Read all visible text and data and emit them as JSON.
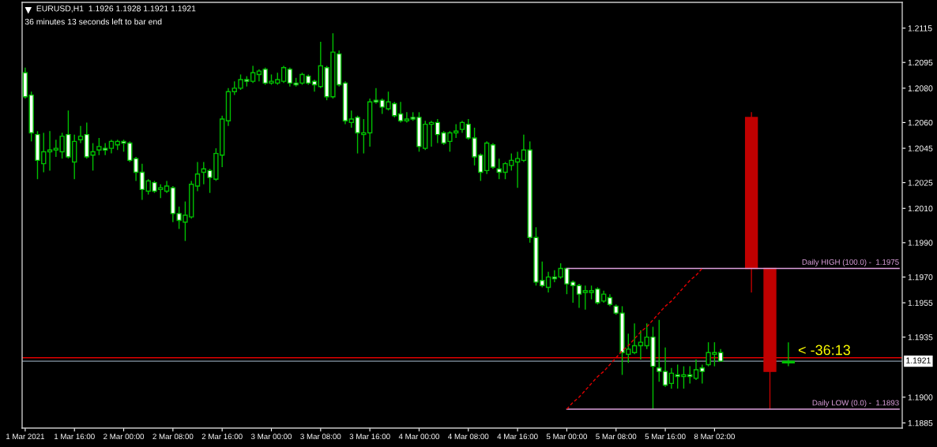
{
  "chart_data": {
    "type": "candlestick",
    "title": "EURUSD,H1  1.1926 1.1928 1.1921 1.1921",
    "subtitle": "36 minutes 13 seconds left to bar end",
    "categories": [
      "1 Mar 2021",
      null,
      null,
      null,
      null,
      null,
      null,
      null,
      "1 Mar 16:00",
      null,
      null,
      null,
      null,
      null,
      null,
      null,
      "2 Mar 00:00",
      null,
      null,
      null,
      null,
      null,
      null,
      null,
      "2 Mar 08:00",
      null,
      null,
      null,
      null,
      null,
      null,
      null,
      "2 Mar 16:00",
      null,
      null,
      null,
      null,
      null,
      null,
      null,
      "3 Mar 00:00",
      null,
      null,
      null,
      null,
      null,
      null,
      null,
      "3 Mar 08:00",
      null,
      null,
      null,
      null,
      null,
      null,
      null,
      "3 Mar 16:00",
      null,
      null,
      null,
      null,
      null,
      null,
      null,
      "4 Mar 00:00",
      null,
      null,
      null,
      null,
      null,
      null,
      null,
      "4 Mar 08:00",
      null,
      null,
      null,
      null,
      null,
      null,
      null,
      "4 Mar 16:00",
      null,
      null,
      null,
      null,
      null,
      null,
      null,
      "5 Mar 00:00",
      null,
      null,
      null,
      null,
      null,
      null,
      null,
      "5 Mar 08:00",
      null,
      null,
      null,
      null,
      null,
      null,
      null,
      "5 Mar 16:00",
      null,
      null,
      null,
      null,
      null,
      null,
      null,
      "8 Mar 02:00",
      null,
      null,
      null,
      null,
      null,
      null,
      null,
      null,
      null,
      null,
      null,
      null,
      null,
      null,
      null,
      null,
      null,
      null,
      null,
      null,
      null,
      null,
      null,
      null,
      null,
      null,
      null,
      null,
      null,
      null
    ],
    "ylim": [
      1.1882,
      1.213
    ],
    "yticks": [
      1.2115,
      1.2095,
      {
        "value": 1.208,
        "label": "1.2080"
      },
      {
        "value": 1.206,
        "label": "1.2060"
      },
      1.2045,
      1.2025,
      {
        "value": 1.201,
        "label": "1.2010"
      },
      {
        "value": 1.199,
        "label": "1.1990"
      },
      {
        "value": 1.197,
        "label": "1.1970"
      },
      1.1955,
      1.1935,
      {
        "value": 1.19,
        "label": "1.1900"
      },
      1.1885
    ],
    "series": [
      {
        "color": "#00c000",
        "ohlc": [
          [
            1.2089,
            1.2092,
            1.2074,
            1.2075
          ],
          [
            1.2076,
            1.2078,
            1.2049,
            1.2054
          ],
          [
            1.2053,
            1.2055,
            1.2027,
            1.2038
          ],
          [
            1.2036,
            1.2054,
            1.2031,
            1.2043
          ],
          [
            1.2043,
            1.2055,
            1.2032,
            1.2044
          ],
          [
            1.2044,
            1.205,
            1.204,
            1.2045
          ],
          [
            1.2043,
            1.2054,
            1.2039,
            1.2052
          ],
          [
            1.2053,
            1.2067,
            1.2039,
            1.204
          ],
          [
            1.2037,
            1.2053,
            1.2027,
            1.2049
          ],
          [
            1.205,
            1.2058,
            1.2048,
            1.2052
          ],
          [
            1.2053,
            1.206,
            1.2039,
            1.204
          ],
          [
            1.2041,
            1.2048,
            1.2032,
            1.2043
          ],
          [
            1.2044,
            1.2051,
            1.2041,
            1.2046
          ],
          [
            1.2045,
            1.2048,
            1.2041,
            1.2044
          ],
          [
            1.2045,
            1.205,
            1.2042,
            1.2049
          ],
          [
            1.2047,
            1.205,
            1.2044,
            1.2049
          ],
          [
            1.2049,
            1.205,
            1.2043,
            1.2048
          ],
          [
            1.2048,
            1.2049,
            1.2037,
            1.2038
          ],
          [
            1.2039,
            1.204,
            1.2026,
            1.2031
          ],
          [
            1.2031,
            1.2036,
            1.2015,
            1.2021
          ],
          [
            1.202,
            1.2027,
            1.2018,
            1.2026
          ],
          [
            1.2025,
            1.2026,
            1.2019,
            1.202
          ],
          [
            1.2021,
            1.2024,
            1.2016,
            1.2022
          ],
          [
            1.202,
            1.2026,
            1.2019,
            1.2023
          ],
          [
            1.2022,
            1.2023,
            1.2002,
            1.2007
          ],
          [
            1.2007,
            1.2011,
            1.1998,
            1.2003
          ],
          [
            1.2002,
            1.2014,
            1.1991,
            1.2006
          ],
          [
            1.2005,
            1.2026,
            1.2004,
            1.2024
          ],
          [
            1.2023,
            1.2037,
            1.202,
            1.203
          ],
          [
            1.2031,
            1.2037,
            1.2024,
            1.2033
          ],
          [
            1.2032,
            1.2033,
            1.2019,
            1.2028
          ],
          [
            1.2027,
            1.2045,
            1.2026,
            1.2042
          ],
          [
            1.2041,
            1.2064,
            1.2034,
            1.2062
          ],
          [
            1.2061,
            1.208,
            1.2058,
            1.2078
          ],
          [
            1.2078,
            1.2084,
            1.2076,
            1.208
          ],
          [
            1.208,
            1.2088,
            1.2079,
            1.2085
          ],
          [
            1.2085,
            1.2087,
            1.2081,
            1.2084
          ],
          [
            1.2084,
            1.2093,
            1.2083,
            1.2089
          ],
          [
            1.2088,
            1.2091,
            1.2084,
            1.209
          ],
          [
            1.2091,
            1.2092,
            1.2082,
            1.2083
          ],
          [
            1.2083,
            1.2088,
            1.2082,
            1.2084
          ],
          [
            1.2083,
            1.2089,
            1.2082,
            1.2085
          ],
          [
            1.2084,
            1.2093,
            1.2083,
            1.2092
          ],
          [
            1.2091,
            1.2092,
            1.2081,
            1.2083
          ],
          [
            1.2083,
            1.2086,
            1.2081,
            1.2082
          ],
          [
            1.2083,
            1.2089,
            1.2082,
            1.2088
          ],
          [
            1.2087,
            1.2088,
            1.2082,
            1.2083
          ],
          [
            1.2084,
            1.2085,
            1.2078,
            1.2082
          ],
          [
            1.2081,
            1.2107,
            1.208,
            1.2093
          ],
          [
            1.2092,
            1.2093,
            1.2073,
            1.2075
          ],
          [
            1.2075,
            1.2112,
            1.2074,
            1.2101
          ],
          [
            1.21,
            1.2102,
            1.2081,
            1.2082
          ],
          [
            1.2083,
            1.2084,
            1.2059,
            1.2061
          ],
          [
            1.206,
            1.2067,
            1.2057,
            1.2062
          ],
          [
            1.2063,
            1.2064,
            1.2042,
            1.2054
          ],
          [
            1.2053,
            1.2062,
            1.2042,
            1.2054
          ],
          [
            1.2054,
            1.2074,
            1.2046,
            1.2072
          ],
          [
            1.2073,
            1.208,
            1.2071,
            1.2072
          ],
          [
            1.2073,
            1.2074,
            1.2065,
            1.2069
          ],
          [
            1.2068,
            1.2078,
            1.2067,
            1.2072
          ],
          [
            1.2071,
            1.2072,
            1.2063,
            1.2064
          ],
          [
            1.2065,
            1.2072,
            1.206,
            1.2061
          ],
          [
            1.2061,
            1.2066,
            1.206,
            1.2062
          ],
          [
            1.2063,
            1.2066,
            1.2061,
            1.2062
          ],
          [
            1.2063,
            1.2066,
            1.2043,
            1.2046
          ],
          [
            1.2045,
            1.2061,
            1.2044,
            1.2059
          ],
          [
            1.2059,
            1.2061,
            1.2046,
            1.206
          ],
          [
            1.206,
            1.2062,
            1.2048,
            1.2053
          ],
          [
            1.2054,
            1.2055,
            1.2047,
            1.2048
          ],
          [
            1.2049,
            1.2055,
            1.2043,
            1.2054
          ],
          [
            1.2054,
            1.2059,
            1.2051,
            1.2055
          ],
          [
            1.2056,
            1.2061,
            1.2054,
            1.206
          ],
          [
            1.2059,
            1.2062,
            1.205,
            1.2051
          ],
          [
            1.2051,
            1.2057,
            1.2035,
            1.204
          ],
          [
            1.2041,
            1.2042,
            1.2026,
            1.2031
          ],
          [
            1.2032,
            1.2049,
            1.203,
            1.2048
          ],
          [
            1.2047,
            1.2048,
            1.2033,
            1.2034
          ],
          [
            1.2033,
            1.2039,
            1.2027,
            1.2031
          ],
          [
            1.2031,
            1.2037,
            1.2027,
            1.2036
          ],
          [
            1.2035,
            1.2042,
            1.2032,
            1.2038
          ],
          [
            1.2037,
            1.2043,
            1.2022,
            1.2039
          ],
          [
            1.2038,
            1.2053,
            1.2037,
            1.2044
          ],
          [
            1.2044,
            1.2049,
            1.199,
            1.1993
          ],
          [
            1.1993,
            1.1999,
            1.1965,
            1.1967
          ],
          [
            1.1968,
            1.1979,
            1.1964,
            1.1965
          ],
          [
            1.1964,
            1.1973,
            1.1961,
            1.197
          ],
          [
            1.197,
            1.1974,
            1.1967,
            1.1969
          ],
          [
            1.197,
            1.1978,
            1.1969,
            1.1975
          ],
          [
            1.1975,
            1.1975,
            1.196,
            1.1966
          ],
          [
            1.1967,
            1.1968,
            1.1955,
            1.1965
          ],
          [
            1.1965,
            1.1966,
            1.1952,
            1.196
          ],
          [
            1.1961,
            1.1965,
            1.1951,
            1.1962
          ],
          [
            1.1961,
            1.1965,
            1.1957,
            1.1962
          ],
          [
            1.1963,
            1.1964,
            1.1954,
            1.1955
          ],
          [
            1.1956,
            1.1962,
            1.1955,
            1.196
          ],
          [
            1.1958,
            1.196,
            1.1953,
            1.1954
          ],
          [
            1.1953,
            1.1954,
            1.1948,
            1.1949
          ],
          [
            1.1949,
            1.1953,
            1.1913,
            1.1926
          ],
          [
            1.1925,
            1.1937,
            1.192,
            1.1928
          ],
          [
            1.1926,
            1.1943,
            1.1925,
            1.193
          ],
          [
            1.193,
            1.1939,
            1.1922,
            1.1932
          ],
          [
            1.193,
            1.1943,
            1.1928,
            1.1935
          ],
          [
            1.1935,
            1.1941,
            1.1893,
            1.1918
          ],
          [
            1.1917,
            1.1945,
            1.1909,
            1.1915
          ],
          [
            1.1915,
            1.1929,
            1.1906,
            1.1907
          ],
          [
            1.1908,
            1.1917,
            1.1905,
            1.1914
          ],
          [
            1.1913,
            1.1919,
            1.1905,
            1.1912
          ],
          [
            1.1912,
            1.1918,
            1.1905,
            1.1913
          ],
          [
            1.1913,
            1.1918,
            1.1908,
            1.1912
          ],
          [
            1.1911,
            1.1922,
            1.191,
            1.1916
          ],
          [
            1.1917,
            1.1919,
            1.1908,
            1.1915
          ],
          [
            1.1919,
            1.1932,
            1.1918,
            1.1926
          ],
          [
            1.1925,
            1.1932,
            1.1918,
            1.1926
          ],
          [
            1.1926,
            1.1928,
            1.1921,
            1.1921
          ],
          null,
          null,
          null,
          null,
          null,
          null,
          null,
          null,
          null,
          null,
          null,
          null,
          null,
          null,
          null,
          null,
          null,
          null,
          null,
          null,
          null,
          null,
          null,
          null,
          null,
          null,
          null,
          null,
          null
        ],
        "colors": [
          "#ffffff",
          "#ffffff",
          "#ffffff",
          "#000000",
          "#000000",
          "#000000",
          "#000000",
          "#ffffff",
          "#000000",
          "#000000",
          "#ffffff",
          "#000000",
          "#000000",
          "#ffffff",
          "#000000",
          "#000000",
          "#ffffff",
          "#ffffff",
          "#ffffff",
          "#ffffff",
          "#000000",
          "#ffffff",
          "#000000",
          "#000000",
          "#ffffff",
          "#ffffff",
          "#000000",
          "#000000",
          "#000000",
          "#000000",
          "#ffffff",
          "#000000",
          "#000000",
          "#000000",
          "#000000",
          "#000000",
          "#ffffff",
          "#000000",
          "#000000",
          "#ffffff",
          "#000000",
          "#000000",
          "#000000",
          "#ffffff",
          "#ffffff",
          "#000000",
          "#ffffff",
          "#ffffff",
          "#000000",
          "#ffffff",
          "#000000",
          "#ffffff",
          "#ffffff",
          "#000000",
          "#ffffff",
          "#000000",
          "#000000",
          "#ffffff",
          "#ffffff",
          "#000000",
          "#ffffff",
          "#ffffff",
          "#000000",
          "#ffffff",
          "#ffffff",
          "#000000",
          "#000000",
          "#ffffff",
          "#ffffff",
          "#000000",
          "#000000",
          "#000000",
          "#ffffff",
          "#ffffff",
          "#ffffff",
          "#000000",
          "#ffffff",
          "#ffffff",
          "#000000",
          "#000000",
          "#000000",
          "#000000",
          "#ffffff",
          "#ffffff",
          "#ffffff",
          "#000000",
          "#ffffff",
          "#000000",
          "#ffffff",
          "#ffffff",
          "#ffffff",
          "#000000",
          "#000000",
          "#ffffff",
          "#000000",
          "#ffffff",
          "#ffffff",
          "#ffffff",
          "#000000",
          "#000000",
          "#000000",
          "#000000",
          "#ffffff",
          "#ffffff",
          "#ffffff",
          "#000000",
          "#ffffff",
          "#000000",
          "#ffffff",
          "#000000",
          "#ffffff",
          "#000000",
          "#000000",
          "#ffffff",
          null,
          null,
          null,
          null,
          null,
          null,
          null,
          null,
          null,
          null,
          null,
          null,
          null,
          null,
          null,
          null,
          null,
          null,
          null,
          null,
          null,
          null,
          null,
          null,
          null,
          null,
          null,
          null,
          null
        ]
      },
      {
        "ohlc": [
          null,
          null,
          null,
          null,
          null,
          null,
          null,
          null,
          null,
          null,
          null,
          null,
          null,
          null,
          null,
          null,
          null,
          null,
          null,
          null,
          null,
          null,
          null,
          null,
          null,
          null,
          null,
          null,
          null,
          null,
          null,
          null,
          null,
          null,
          null,
          null,
          null,
          null,
          null,
          null,
          null,
          null,
          null,
          null,
          null,
          null,
          null,
          null,
          null,
          null,
          null,
          null,
          null,
          null,
          null,
          null,
          null,
          null,
          null,
          null,
          null,
          null,
          null,
          null,
          null,
          null,
          null,
          null,
          null,
          null,
          null,
          null,
          null,
          null,
          null,
          null,
          null,
          null,
          null,
          null,
          null,
          null,
          null,
          null,
          null,
          null,
          null,
          null,
          null,
          null,
          null,
          null,
          null,
          null,
          null,
          null,
          null,
          null,
          null,
          null,
          null,
          null,
          null,
          null,
          null,
          null,
          null,
          null,
          null,
          null,
          null,
          null,
          null,
          null,
          null,
          null,
          null,
          null,
          [
            1.2063,
            1.2066,
            1.1961,
            1.1975
          ],
          null,
          null,
          [
            1.1975,
            1.1975,
            1.1893,
            1.1915
          ],
          null,
          null,
          [
            1.192,
            1.1932,
            1.1918,
            1.1921
          ],
          null,
          null,
          null,
          null,
          null,
          null,
          null,
          null,
          null,
          null,
          null,
          null,
          null,
          null,
          null,
          null,
          null,
          null
        ],
        "colors": [
          null,
          null,
          null,
          null,
          null,
          null,
          null,
          null,
          null,
          null,
          null,
          null,
          null,
          null,
          null,
          null,
          null,
          null,
          null,
          null,
          null,
          null,
          null,
          null,
          null,
          null,
          null,
          null,
          null,
          null,
          null,
          null,
          null,
          null,
          null,
          null,
          null,
          null,
          null,
          null,
          null,
          null,
          null,
          null,
          null,
          null,
          null,
          null,
          null,
          null,
          null,
          null,
          null,
          null,
          null,
          null,
          null,
          null,
          null,
          null,
          null,
          null,
          null,
          null,
          null,
          null,
          null,
          null,
          null,
          null,
          null,
          null,
          null,
          null,
          null,
          null,
          null,
          null,
          null,
          null,
          null,
          null,
          null,
          null,
          null,
          null,
          null,
          null,
          null,
          null,
          null,
          null,
          null,
          null,
          null,
          null,
          null,
          null,
          null,
          null,
          null,
          null,
          null,
          null,
          null,
          null,
          null,
          null,
          null,
          null,
          null,
          null,
          null,
          null,
          null,
          null,
          null,
          null,
          "#c00000",
          null,
          null,
          "#c00000",
          null,
          null,
          "#00c000",
          null,
          null,
          null,
          null,
          null,
          null,
          null,
          null,
          null,
          null,
          null,
          null,
          null,
          null,
          null,
          null,
          null,
          null
        ]
      },
      {
        "type": "line",
        "name": "Daily HIGH (100.0) -  1.1975",
        "color": "#dda0dd",
        "values": [
          null,
          null,
          null,
          null,
          null,
          null,
          null,
          null,
          null,
          null,
          null,
          null,
          null,
          null,
          null,
          null,
          null,
          null,
          null,
          null,
          null,
          null,
          null,
          null,
          null,
          null,
          null,
          null,
          null,
          null,
          null,
          null,
          null,
          null,
          null,
          null,
          null,
          null,
          null,
          null,
          null,
          null,
          null,
          null,
          null,
          null,
          null,
          null,
          null,
          null,
          null,
          null,
          null,
          null,
          null,
          null,
          null,
          null,
          null,
          null,
          null,
          null,
          null,
          null,
          null,
          null,
          null,
          null,
          null,
          null,
          null,
          null,
          null,
          null,
          null,
          null,
          null,
          null,
          null,
          null,
          null,
          null,
          null,
          null,
          null,
          null,
          null,
          null,
          1.1975,
          1.1975,
          1.1975,
          1.1975,
          1.1975,
          1.1975,
          1.1975,
          1.1975,
          1.1975,
          1.1975,
          1.1975,
          1.1975,
          1.1975,
          1.1975,
          1.1975,
          1.1975,
          1.1975,
          1.1975,
          1.1975,
          1.1975,
          1.1975,
          1.1975,
          1.1975,
          1.1975,
          1.1975,
          1.1975,
          1.1975,
          1.1975,
          1.1975,
          1.1975,
          1.1975,
          1.1975,
          1.1975,
          1.1975,
          1.1975,
          1.1975,
          1.1975,
          1.1975,
          1.1975,
          1.1975,
          1.1975,
          1.1975,
          1.1975,
          1.1975,
          1.1975,
          1.1975,
          1.1975,
          1.1975,
          1.1975,
          1.1975,
          1.1975,
          1.1975,
          1.1975,
          1.1975,
          1.1975
        ]
      },
      {
        "type": "line",
        "name": "Daily LOW (0.0) -  1.1893",
        "color": "#dda0dd",
        "values": [
          null,
          null,
          null,
          null,
          null,
          null,
          null,
          null,
          null,
          null,
          null,
          null,
          null,
          null,
          null,
          null,
          null,
          null,
          null,
          null,
          null,
          null,
          null,
          null,
          null,
          null,
          null,
          null,
          null,
          null,
          null,
          null,
          null,
          null,
          null,
          null,
          null,
          null,
          null,
          null,
          null,
          null,
          null,
          null,
          null,
          null,
          null,
          null,
          null,
          null,
          null,
          null,
          null,
          null,
          null,
          null,
          null,
          null,
          null,
          null,
          null,
          null,
          null,
          null,
          null,
          null,
          null,
          null,
          null,
          null,
          null,
          null,
          null,
          null,
          null,
          null,
          null,
          null,
          null,
          null,
          null,
          null,
          null,
          null,
          null,
          null,
          null,
          null,
          1.1893,
          1.1893,
          1.1893,
          1.1893,
          1.1893,
          1.1893,
          1.1893,
          1.1893,
          1.1893,
          1.1893,
          1.1893,
          1.1893,
          1.1893,
          1.1893,
          1.1893,
          1.1893,
          1.1893,
          1.1893,
          1.1893,
          1.1893,
          1.1893,
          1.1893,
          1.1893,
          1.1893,
          1.1893,
          1.1893,
          1.1893,
          1.1893,
          1.1893,
          1.1893,
          1.1893,
          1.1893,
          1.1893,
          1.1893,
          1.1893,
          1.1893,
          1.1893,
          1.1893,
          1.1893,
          1.1893,
          1.1893,
          1.1893,
          1.1893,
          1.1893,
          1.1893,
          1.1893,
          1.1893,
          1.1893,
          1.1893,
          1.1893,
          1.1893,
          1.1893,
          1.1893,
          1.1893,
          1.1893
        ]
      },
      {
        "type": "line",
        "color": "#e00000",
        "line_style": "dashed",
        "values": [
          null,
          null,
          null,
          null,
          null,
          null,
          null,
          null,
          null,
          null,
          null,
          null,
          null,
          null,
          null,
          null,
          null,
          null,
          null,
          null,
          null,
          null,
          null,
          null,
          null,
          null,
          null,
          null,
          null,
          null,
          null,
          null,
          null,
          null,
          null,
          null,
          null,
          null,
          null,
          null,
          null,
          null,
          null,
          null,
          null,
          null,
          null,
          null,
          null,
          null,
          null,
          null,
          null,
          null,
          null,
          null,
          null,
          null,
          null,
          null,
          null,
          null,
          null,
          null,
          null,
          null,
          null,
          null,
          null,
          null,
          null,
          null,
          null,
          null,
          null,
          null,
          null,
          null,
          null,
          null,
          null,
          null,
          null,
          null,
          null,
          null,
          null,
          null,
          1.1893,
          1.1897,
          1.19,
          1.1904,
          1.1908,
          1.1912,
          1.1915,
          1.1919,
          1.1923,
          1.1927,
          1.193,
          1.1934,
          1.1938,
          1.1941,
          1.1945,
          1.1949,
          1.1953,
          1.1956,
          1.196,
          1.1964,
          1.1968,
          1.1971,
          1.1975,
          null,
          null,
          null,
          null,
          null,
          null,
          null,
          null,
          null,
          null,
          null,
          null,
          null,
          null,
          null,
          null,
          null,
          null,
          null,
          null,
          null,
          null,
          null,
          null,
          null,
          null,
          null,
          null,
          null,
          null,
          null,
          null
        ]
      }
    ],
    "ref_lines": [
      {
        "axis": "y",
        "value": 1.1923,
        "color": "#e00000"
      },
      {
        "axis": "y",
        "value": 1.1921,
        "color": "#8898a8",
        "label": "1.1921"
      }
    ],
    "annotations": [
      {
        "text": "< -36:13",
        "y": 1.1921
      }
    ]
  }
}
